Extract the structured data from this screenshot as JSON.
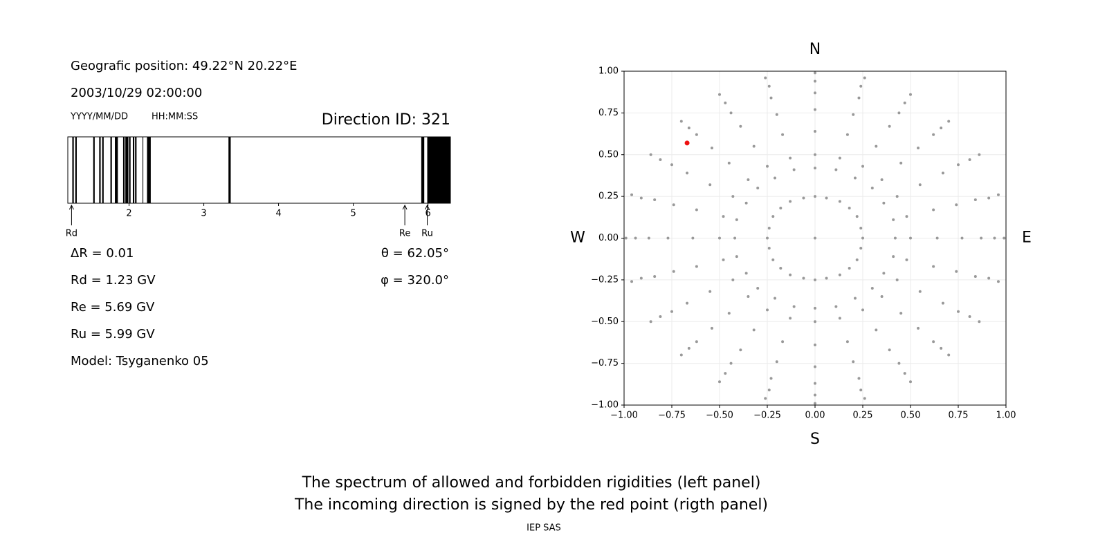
{
  "info": {
    "position": "Geografic position: 49.22°N 20.22°E",
    "datetime": "2003/10/29 02:00:00",
    "date_format": "YYYY/MM/DD",
    "time_format": "HH:MM:SS",
    "direction_id": "Direction ID: 321",
    "left_params": [
      "ΔR = 0.01",
      "Rd = 1.23 GV",
      "Re = 5.69 GV",
      "Ru = 5.99 GV",
      "Model: Tsyganenko 05"
    ],
    "right_params": [
      "θ = 62.05°",
      "φ = 320.0°"
    ]
  },
  "caption": [
    "The spectrum of allowed and forbidden rigidities (left panel)",
    "The incoming direction is signed by the red point (rigth panel)"
  ],
  "footer": "IEP SAS",
  "chart_data": [
    {
      "type": "spectrum",
      "color": "#000000",
      "xlim": [
        1.18,
        6.3
      ],
      "xticks": [
        2,
        3,
        4,
        5,
        6
      ],
      "bands": [
        [
          1.24,
          1.26
        ],
        [
          1.28,
          1.3
        ],
        [
          1.52,
          1.54
        ],
        [
          1.6,
          1.62
        ],
        [
          1.64,
          1.66
        ],
        [
          1.75,
          1.77
        ],
        [
          1.81,
          1.85
        ],
        [
          1.92,
          1.94
        ],
        [
          1.95,
          1.99
        ],
        [
          2.0,
          2.02
        ],
        [
          2.05,
          2.07
        ],
        [
          2.08,
          2.1
        ],
        [
          2.18,
          2.19
        ],
        [
          2.24,
          2.29
        ],
        [
          3.33,
          3.36
        ],
        [
          5.91,
          5.95
        ],
        [
          5.99,
          6.3
        ]
      ],
      "markers": [
        {
          "label": "Rd",
          "value": 1.23
        },
        {
          "label": "Re",
          "value": 5.69
        },
        {
          "label": "Ru",
          "value": 5.99
        }
      ]
    },
    {
      "type": "scatter",
      "xlim": [
        -1,
        1
      ],
      "ylim": [
        -1,
        1
      ],
      "grid": true,
      "xticks": [
        {
          "value": -1,
          "label": "−1.00"
        },
        {
          "value": -0.75,
          "label": "−0.75"
        },
        {
          "value": -0.5,
          "label": "−0.50"
        },
        {
          "value": -0.25,
          "label": "−0.25"
        },
        {
          "value": 0,
          "label": "0.00"
        },
        {
          "value": 0.25,
          "label": "0.25"
        },
        {
          "value": 0.5,
          "label": "0.50"
        },
        {
          "value": 0.75,
          "label": "0.75"
        },
        {
          "value": 1,
          "label": "1.00"
        }
      ],
      "yticks": [
        {
          "value": -1,
          "label": "−1.00"
        },
        {
          "value": -0.75,
          "label": "−0.75"
        },
        {
          "value": -0.5,
          "label": "−0.50"
        },
        {
          "value": -0.25,
          "label": "−0.25"
        },
        {
          "value": 0,
          "label": "0.00"
        },
        {
          "value": 0.25,
          "label": "0.25"
        },
        {
          "value": 0.5,
          "label": "0.50"
        },
        {
          "value": 0.75,
          "label": "0.75"
        },
        {
          "value": 1,
          "label": "1.00"
        }
      ],
      "compass": {
        "north": "N",
        "south": "S",
        "west": "W",
        "east": "E"
      },
      "series": [
        {
          "color": "#999999",
          "x": [
            0,
            0.25,
            0.24,
            0.22,
            0.18,
            0.13,
            0.06,
            0,
            -0.06,
            -0.13,
            -0.18,
            -0.22,
            -0.24,
            -0.25,
            -0.24,
            -0.22,
            -0.18,
            -0.13,
            -0.06,
            0,
            0.06,
            0.13,
            0.18,
            0.22,
            0.24,
            0.42,
            0.41,
            0.36,
            0.3,
            0.21,
            0.11,
            0,
            -0.11,
            -0.21,
            -0.3,
            -0.36,
            -0.41,
            -0.42,
            -0.41,
            -0.36,
            -0.3,
            -0.21,
            -0.11,
            0,
            0.11,
            0.21,
            0.3,
            0.36,
            0.41,
            0.5,
            0.48,
            0.43,
            0.35,
            0.25,
            0.13,
            0,
            -0.13,
            -0.25,
            -0.35,
            -0.43,
            -0.48,
            -0.5,
            -0.48,
            -0.43,
            -0.35,
            -0.25,
            -0.13,
            0,
            0.13,
            0.25,
            0.35,
            0.43,
            0.48,
            0.64,
            0.62,
            0.55,
            0.45,
            0.32,
            0.17,
            0,
            -0.17,
            -0.32,
            -0.45,
            -0.55,
            -0.62,
            -0.64,
            -0.62,
            -0.55,
            -0.45,
            -0.32,
            -0.17,
            0,
            0.17,
            0.32,
            0.45,
            0.55,
            0.62,
            0.77,
            0.74,
            0.67,
            0.54,
            0.39,
            0.2,
            0,
            -0.2,
            -0.39,
            -0.54,
            -0.67,
            -0.74,
            -0.77,
            -0.74,
            -0.67,
            -0.54,
            -0.39,
            -0.2,
            0,
            0.2,
            0.39,
            0.54,
            0.67,
            0.74,
            0.87,
            0.84,
            0.75,
            0.62,
            0.44,
            0.23,
            0,
            -0.23,
            -0.44,
            -0.62,
            -0.75,
            -0.84,
            -0.87,
            -0.84,
            -0.75,
            -0.62,
            -0.44,
            -0.23,
            0,
            0.23,
            0.44,
            0.62,
            0.75,
            0.84,
            0.94,
            0.91,
            0.81,
            0.66,
            0.47,
            0.24,
            0,
            -0.24,
            -0.47,
            -0.66,
            -0.81,
            -0.91,
            -0.94,
            -0.91,
            -0.81,
            -0.66,
            -0.47,
            -0.24,
            0,
            0.24,
            0.47,
            0.66,
            0.81,
            0.91,
            0.99,
            0.96,
            0.86,
            0.7,
            0.5,
            0.26,
            0,
            -0.26,
            -0.5,
            -0.7,
            -0.86,
            -0.96,
            -0.99,
            -0.96,
            -0.86,
            -0.7,
            -0.5,
            -0.26,
            0,
            0.26,
            0.5,
            0.7,
            0.86,
            0.96
          ],
          "values": [
            0,
            0,
            0.06,
            0.13,
            0.18,
            0.22,
            0.24,
            0.25,
            0.24,
            0.22,
            0.18,
            0.13,
            0.06,
            0,
            -0.06,
            -0.13,
            -0.18,
            -0.22,
            -0.24,
            -0.25,
            -0.24,
            -0.22,
            -0.18,
            -0.13,
            -0.06,
            0,
            0.11,
            0.21,
            0.3,
            0.36,
            0.41,
            0.42,
            0.41,
            0.36,
            0.3,
            0.21,
            0.11,
            0,
            -0.11,
            -0.21,
            -0.3,
            -0.36,
            -0.41,
            -0.42,
            -0.41,
            -0.36,
            -0.3,
            -0.21,
            -0.11,
            0,
            0.13,
            0.25,
            0.35,
            0.43,
            0.48,
            0.5,
            0.48,
            0.43,
            0.35,
            0.25,
            0.13,
            0,
            -0.13,
            -0.25,
            -0.35,
            -0.43,
            -0.48,
            -0.5,
            -0.48,
            -0.43,
            -0.35,
            -0.25,
            -0.13,
            0,
            0.17,
            0.32,
            0.45,
            0.55,
            0.62,
            0.64,
            0.62,
            0.55,
            0.45,
            0.32,
            0.17,
            0,
            -0.17,
            -0.32,
            -0.45,
            -0.55,
            -0.62,
            -0.64,
            -0.62,
            -0.55,
            -0.45,
            -0.32,
            -0.17,
            0,
            0.2,
            0.39,
            0.54,
            0.67,
            0.74,
            0.77,
            0.74,
            0.67,
            0.54,
            0.39,
            0.2,
            0,
            -0.2,
            -0.39,
            -0.54,
            -0.67,
            -0.74,
            -0.77,
            -0.74,
            -0.67,
            -0.54,
            -0.39,
            -0.2,
            0,
            0.23,
            0.44,
            0.62,
            0.75,
            0.84,
            0.87,
            0.84,
            0.75,
            0.62,
            0.44,
            0.23,
            0,
            -0.23,
            -0.44,
            -0.62,
            -0.75,
            -0.84,
            -0.87,
            -0.84,
            -0.75,
            -0.62,
            -0.44,
            -0.23,
            0,
            0.24,
            0.47,
            0.66,
            0.81,
            0.91,
            0.94,
            0.91,
            0.81,
            0.66,
            0.47,
            0.24,
            0,
            -0.24,
            -0.47,
            -0.66,
            -0.81,
            -0.91,
            -0.94,
            -0.91,
            -0.81,
            -0.66,
            -0.47,
            -0.24,
            0,
            0.26,
            0.5,
            0.7,
            0.86,
            0.96,
            0.99,
            0.96,
            0.86,
            0.7,
            0.5,
            0.26,
            0,
            -0.26,
            -0.5,
            -0.7,
            -0.86,
            -0.96,
            -0.99,
            -0.96,
            -0.86,
            -0.7,
            -0.5,
            -0.26
          ]
        },
        {
          "color": "#ee1111",
          "x": [
            -0.67
          ],
          "values": [
            0.57
          ]
        }
      ]
    }
  ]
}
